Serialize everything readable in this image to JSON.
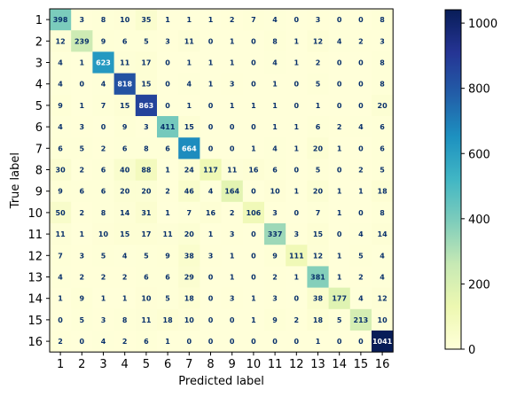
{
  "chart_data": {
    "type": "heatmap",
    "title": "",
    "xlabel": "Predicted label",
    "ylabel": "True label",
    "row_labels": [
      "1",
      "2",
      "3",
      "4",
      "5",
      "6",
      "7",
      "8",
      "9",
      "10",
      "11",
      "12",
      "13",
      "14",
      "15",
      "16"
    ],
    "col_labels": [
      "1",
      "2",
      "3",
      "4",
      "5",
      "6",
      "7",
      "8",
      "9",
      "10",
      "11",
      "12",
      "13",
      "14",
      "15",
      "16"
    ],
    "matrix": [
      [
        398,
        3,
        8,
        10,
        35,
        1,
        1,
        1,
        2,
        7,
        4,
        0,
        3,
        0,
        0,
        8
      ],
      [
        12,
        239,
        9,
        6,
        5,
        3,
        11,
        0,
        1,
        0,
        8,
        1,
        12,
        4,
        2,
        3
      ],
      [
        4,
        1,
        623,
        11,
        17,
        0,
        1,
        1,
        1,
        0,
        4,
        1,
        2,
        0,
        0,
        8
      ],
      [
        4,
        0,
        4,
        818,
        15,
        0,
        4,
        1,
        3,
        0,
        1,
        0,
        5,
        0,
        0,
        8
      ],
      [
        9,
        1,
        7,
        15,
        863,
        0,
        1,
        0,
        1,
        1,
        1,
        0,
        1,
        0,
        0,
        20
      ],
      [
        4,
        3,
        0,
        9,
        3,
        411,
        15,
        0,
        0,
        0,
        1,
        1,
        6,
        2,
        4,
        6
      ],
      [
        6,
        5,
        2,
        6,
        8,
        6,
        664,
        0,
        0,
        1,
        4,
        1,
        20,
        1,
        0,
        6
      ],
      [
        30,
        2,
        6,
        40,
        88,
        1,
        24,
        117,
        11,
        16,
        6,
        0,
        5,
        0,
        2,
        5
      ],
      [
        9,
        6,
        6,
        20,
        20,
        2,
        46,
        4,
        164,
        0,
        10,
        1,
        20,
        1,
        1,
        18
      ],
      [
        50,
        2,
        8,
        14,
        31,
        1,
        7,
        16,
        2,
        106,
        3,
        0,
        7,
        1,
        0,
        8
      ],
      [
        11,
        1,
        10,
        15,
        17,
        11,
        20,
        1,
        3,
        0,
        337,
        3,
        15,
        0,
        4,
        14
      ],
      [
        7,
        3,
        5,
        4,
        5,
        9,
        38,
        3,
        1,
        0,
        9,
        111,
        12,
        1,
        5,
        4
      ],
      [
        4,
        2,
        2,
        2,
        6,
        6,
        29,
        0,
        1,
        0,
        2,
        1,
        381,
        1,
        2,
        4
      ],
      [
        1,
        9,
        1,
        1,
        10,
        5,
        18,
        0,
        3,
        1,
        3,
        0,
        38,
        177,
        4,
        12
      ],
      [
        0,
        5,
        3,
        8,
        11,
        18,
        10,
        0,
        0,
        1,
        9,
        2,
        18,
        5,
        213,
        10
      ],
      [
        2,
        0,
        4,
        2,
        6,
        1,
        0,
        0,
        0,
        0,
        0,
        0,
        1,
        0,
        0,
        1041
      ]
    ],
    "colormap": "YlGnBu",
    "colorbar": {
      "range": [
        0,
        1041
      ],
      "tick_values": [
        0,
        200,
        400,
        600,
        800,
        1000
      ],
      "tick_labels": [
        "0",
        "200",
        "400",
        "600",
        "800",
        "1000"
      ]
    },
    "colors": {
      "low_text": "#08306b",
      "high_text": "#ffffff"
    }
  }
}
